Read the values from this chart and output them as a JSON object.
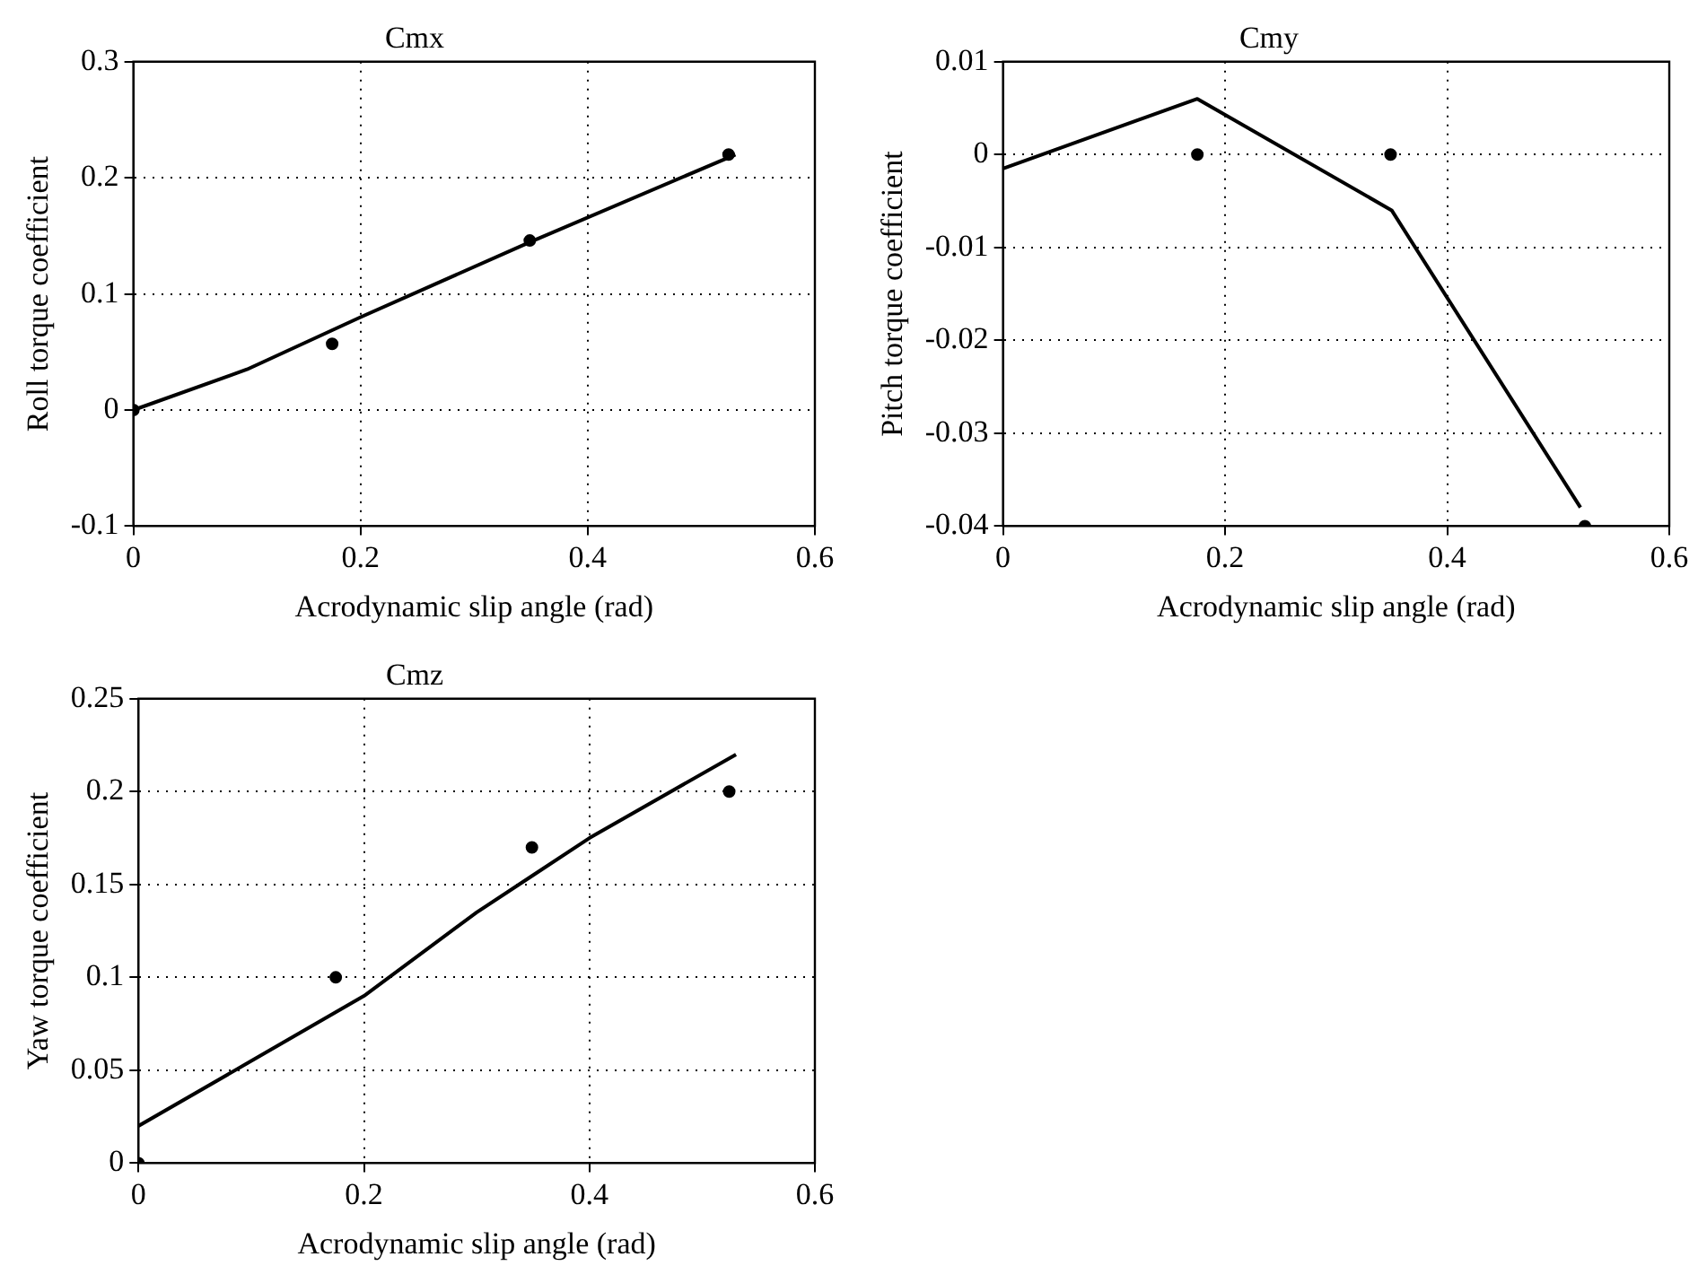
{
  "chart_data": [
    {
      "type": "line",
      "title": "Cmx",
      "xlabel": "Acrodynamic slip angle (rad)",
      "ylabel": "Roll torque coefficient",
      "xlim": [
        0,
        0.6
      ],
      "xticks": [
        0,
        0.2,
        0.4,
        0.6
      ],
      "ylim": [
        -0.1,
        0.3
      ],
      "yticks": [
        -0.1,
        0,
        0.1,
        0.2,
        0.3
      ],
      "grid": true,
      "legend": false,
      "series": [
        {
          "type": "line",
          "color": "#000000",
          "marker": "none",
          "x": [
            0,
            0.1,
            0.2,
            0.35,
            0.53
          ],
          "values": [
            0,
            0.035,
            0.08,
            0.145,
            0.22
          ]
        },
        {
          "type": "scatter",
          "color": "#000000",
          "marker": "circle",
          "x": [
            0,
            0.175,
            0.349,
            0.524
          ],
          "values": [
            0,
            0.057,
            0.146,
            0.22
          ]
        }
      ]
    },
    {
      "type": "line",
      "title": "Cmy",
      "xlabel": "Acrodynamic slip angle (rad)",
      "ylabel": "Pitch torque coefficient",
      "xlim": [
        0,
        0.6
      ],
      "xticks": [
        0,
        0.2,
        0.4,
        0.6
      ],
      "ylim": [
        -0.04,
        0.01
      ],
      "yticks": [
        -0.04,
        -0.03,
        -0.02,
        -0.01,
        0,
        0.01
      ],
      "grid": true,
      "legend": false,
      "series": [
        {
          "type": "line",
          "color": "#000000",
          "marker": "none",
          "x": [
            0,
            0.175,
            0.35,
            0.52
          ],
          "values": [
            -0.0015,
            0.006,
            -0.006,
            -0.038
          ]
        },
        {
          "type": "scatter",
          "color": "#000000",
          "marker": "circle",
          "x": [
            0.175,
            0.349,
            0.524
          ],
          "values": [
            0,
            0,
            -0.04
          ]
        }
      ]
    },
    {
      "type": "line",
      "title": "Cmz",
      "xlabel": "Acrodynamic slip angle (rad)",
      "ylabel": "Yaw torque coefficient",
      "xlim": [
        0,
        0.6
      ],
      "xticks": [
        0,
        0.2,
        0.4,
        0.6
      ],
      "ylim": [
        0,
        0.25
      ],
      "yticks": [
        0,
        0.05,
        0.1,
        0.15,
        0.2,
        0.25
      ],
      "grid": true,
      "legend": false,
      "series": [
        {
          "type": "line",
          "color": "#000000",
          "marker": "none",
          "x": [
            0,
            0.1,
            0.2,
            0.3,
            0.35,
            0.4,
            0.53
          ],
          "values": [
            0.02,
            0.055,
            0.09,
            0.135,
            0.155,
            0.175,
            0.22
          ]
        },
        {
          "type": "scatter",
          "color": "#000000",
          "marker": "circle",
          "x": [
            0,
            0.175,
            0.349,
            0.524
          ],
          "values": [
            0,
            0.1,
            0.17,
            0.2
          ]
        }
      ]
    }
  ]
}
